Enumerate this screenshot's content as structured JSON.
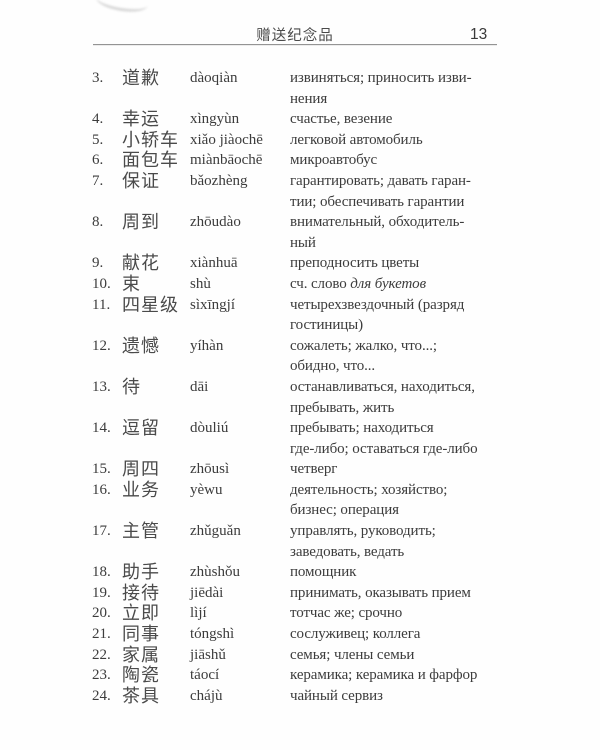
{
  "header": {
    "title": "赠送纪念品",
    "page_number": "13"
  },
  "entries": [
    {
      "num": "3.",
      "hanzi": "道歉",
      "pinyin": "dàoqiàn",
      "ru_lines": [
        "извиняться; приносить изви-",
        "нения"
      ]
    },
    {
      "num": "4.",
      "hanzi": "幸运",
      "pinyin": "xìngyùn",
      "ru_lines": [
        "счастье, везение"
      ]
    },
    {
      "num": "5.",
      "hanzi": "小轿车",
      "pinyin": "xiǎo jiàochē",
      "ru_lines": [
        "легковой автомобиль"
      ]
    },
    {
      "num": "6.",
      "hanzi": "面包车",
      "pinyin": "miànbāochē",
      "ru_lines": [
        "микроавтобус"
      ]
    },
    {
      "num": "7.",
      "hanzi": "保证",
      "pinyin": "bǎozhèng",
      "ru_lines": [
        "гарантировать; давать гаран-",
        "тии; обеспечивать гарантии"
      ]
    },
    {
      "num": "8.",
      "hanzi": "周到",
      "pinyin": "zhōudào",
      "ru_lines": [
        "внимательный, обходитель-",
        "ный"
      ]
    },
    {
      "num": "9.",
      "hanzi": "献花",
      "pinyin": "xiànhuā",
      "ru_lines": [
        "преподносить цветы"
      ]
    },
    {
      "num": "10.",
      "hanzi": "束",
      "pinyin": "shù",
      "ru_lines": [
        [
          {
            "text": "сч. слово "
          },
          {
            "text": "для букетов",
            "italic": true
          }
        ]
      ]
    },
    {
      "num": "11.",
      "hanzi": "四星级",
      "pinyin": "sìxīngjí",
      "ru_lines": [
        "четырехзвездочный (разряд",
        "гостиницы)"
      ]
    },
    {
      "num": "12.",
      "hanzi": "遗憾",
      "pinyin": "yíhàn",
      "ru_lines": [
        "сожалеть; жалко, что...;",
        "обидно, что..."
      ]
    },
    {
      "num": "13.",
      "hanzi": "待",
      "pinyin": "dāi",
      "ru_lines": [
        "останавливаться, находиться,",
        "пребывать, жить"
      ]
    },
    {
      "num": "14.",
      "hanzi": "逗留",
      "pinyin": "dòuliú",
      "ru_lines": [
        "пребывать; находиться",
        "где-либо; оставаться где-либо"
      ]
    },
    {
      "num": "15.",
      "hanzi": "周四",
      "pinyin": "zhōusì",
      "ru_lines": [
        "четверг"
      ]
    },
    {
      "num": "16.",
      "hanzi": "业务",
      "pinyin": "yèwu",
      "ru_lines": [
        "деятельность; хозяйство;",
        "бизнес; операция"
      ]
    },
    {
      "num": "17.",
      "hanzi": "主管",
      "pinyin": "zhǔguǎn",
      "ru_lines": [
        "управлять, руководить;",
        "заведовать, ведать"
      ]
    },
    {
      "num": "18.",
      "hanzi": "助手",
      "pinyin": "zhùshǒu",
      "ru_lines": [
        "помощник"
      ]
    },
    {
      "num": "19.",
      "hanzi": "接待",
      "pinyin": "jiēdài",
      "ru_lines": [
        "принимать, оказывать прием"
      ]
    },
    {
      "num": "20.",
      "hanzi": "立即",
      "pinyin": "lìjí",
      "ru_lines": [
        "тотчас же; срочно"
      ]
    },
    {
      "num": "21.",
      "hanzi": "同事",
      "pinyin": "tóngshì",
      "ru_lines": [
        "сослуживец; коллега"
      ]
    },
    {
      "num": "22.",
      "hanzi": "家属",
      "pinyin": "jiāshǔ",
      "ru_lines": [
        "семья; члены семьи"
      ]
    },
    {
      "num": "23.",
      "hanzi": "陶瓷",
      "pinyin": "táocí",
      "ru_lines": [
        "керамика; керамика и фарфор"
      ]
    },
    {
      "num": "24.",
      "hanzi": "茶具",
      "pinyin": "chájù",
      "ru_lines": [
        "чайный сервиз"
      ]
    }
  ]
}
